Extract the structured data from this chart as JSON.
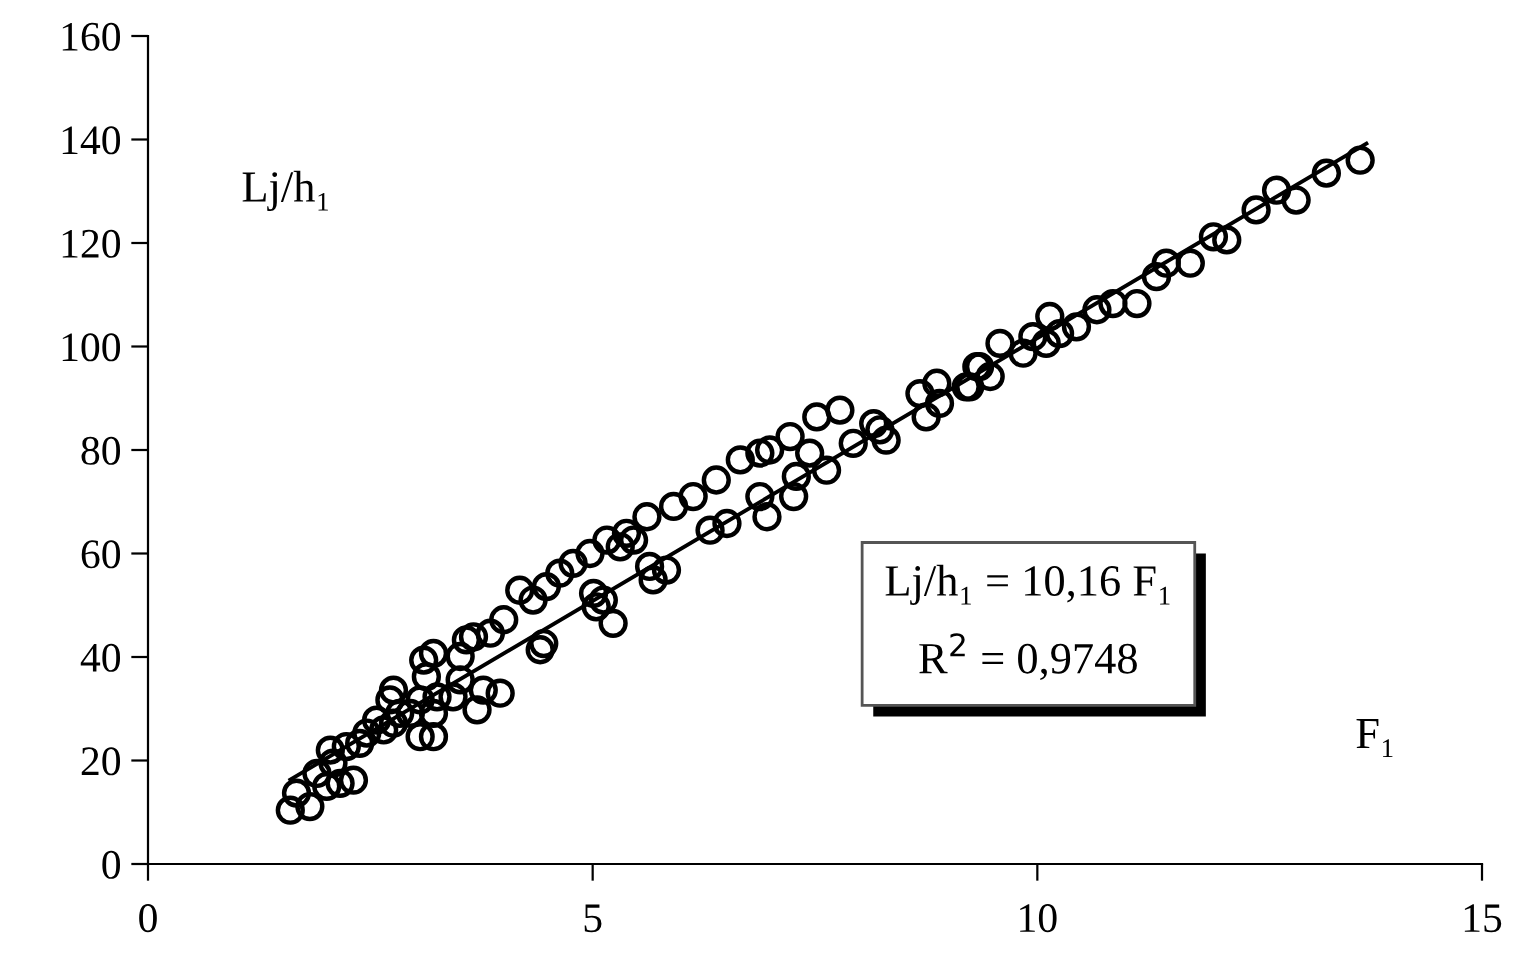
{
  "chart_data": {
    "type": "scatter",
    "xlabel": "F₁",
    "ylabel": "Lj/h₁",
    "xlim": [
      0,
      15
    ],
    "ylim": [
      0,
      160
    ],
    "xticks": [
      0,
      5,
      10,
      15
    ],
    "yticks": [
      0,
      20,
      40,
      60,
      80,
      100,
      120,
      140,
      160
    ],
    "grid": false,
    "legend": false,
    "annotations": [
      "Lj/h₁ = 10,16 F₁\nR$^{2}$ = 0,9748"
    ],
    "series": [
      {
        "marker": "circle",
        "color": "#000000",
        "x": [
          1.6,
          1.82,
          1.67,
          2.01,
          2.31,
          2.16,
          1.9,
          2.08,
          2.05,
          2.23,
          2.38,
          2.46,
          2.65,
          2.76,
          2.57,
          2.83,
          2.72,
          2.76,
          3.06,
          3.21,
          2.95,
          3.21,
          3.06,
          3.25,
          3.43,
          3.7,
          3.96,
          3.77,
          3.51,
          3.13,
          3.1,
          3.21,
          3.51,
          3.58,
          3.66,
          3.85,
          4.0,
          4.18,
          4.33,
          4.48,
          4.41,
          4.45,
          4.63,
          4.78,
          4.97,
          5.01,
          5.04,
          5.23,
          5.16,
          5.31,
          5.61,
          5.64,
          5.68,
          5.46,
          5.12,
          5.38,
          5.83,
          5.91,
          6.13,
          6.32,
          6.51,
          6.39,
          6.66,
          6.88,
          6.96,
          6.88,
          7.26,
          7.29,
          6.99,
          7.22,
          7.44,
          7.63,
          7.52,
          7.78,
          7.93,
          8.16,
          8.3,
          8.23,
          8.68,
          8.75,
          8.9,
          8.87,
          9.2,
          9.32,
          9.58,
          9.24,
          9.35,
          9.47,
          9.84,
          9.95,
          10.14,
          10.1,
          10.25,
          10.44,
          10.67,
          10.85,
          11.12,
          11.34,
          11.45,
          11.72,
          11.98,
          12.13,
          12.46,
          12.69,
          12.91,
          13.25,
          13.63
        ],
        "values": [
          10.4,
          11.1,
          13.7,
          15.0,
          16.2,
          15.6,
          17.5,
          19.5,
          22.0,
          22.7,
          23.3,
          25.3,
          25.9,
          27.2,
          27.8,
          29.1,
          31.7,
          33.6,
          24.6,
          24.6,
          29.1,
          29.1,
          31.7,
          32.3,
          32.3,
          29.8,
          33.0,
          33.6,
          35.6,
          36.2,
          39.4,
          40.7,
          40.1,
          43.3,
          43.9,
          44.6,
          47.2,
          52.9,
          51.0,
          53.6,
          41.4,
          42.6,
          56.2,
          58.1,
          60.0,
          52.3,
          49.7,
          46.5,
          62.6,
          61.3,
          67.1,
          57.5,
          54.9,
          62.6,
          51.0,
          63.9,
          56.8,
          69.1,
          71.0,
          64.5,
          65.8,
          74.2,
          78.1,
          79.4,
          67.1,
          71.0,
          71.0,
          74.9,
          80.0,
          82.6,
          79.4,
          76.1,
          86.4,
          87.7,
          81.3,
          85.1,
          81.9,
          83.9,
          90.9,
          86.4,
          89.0,
          92.9,
          92.2,
          96.1,
          100.6,
          92.2,
          96.1,
          94.2,
          98.7,
          101.9,
          105.8,
          100.6,
          102.5,
          103.8,
          107.1,
          108.3,
          108.3,
          113.5,
          116.1,
          116.1,
          121.2,
          120.6,
          126.4,
          130.2,
          128.3,
          133.5,
          136.0
        ]
      },
      {
        "type": "line",
        "color": "#000000",
        "line_style": "solid",
        "x": [
          1.6,
          13.7
        ],
        "values": [
          16.3,
          139.2
        ]
      }
    ]
  }
}
